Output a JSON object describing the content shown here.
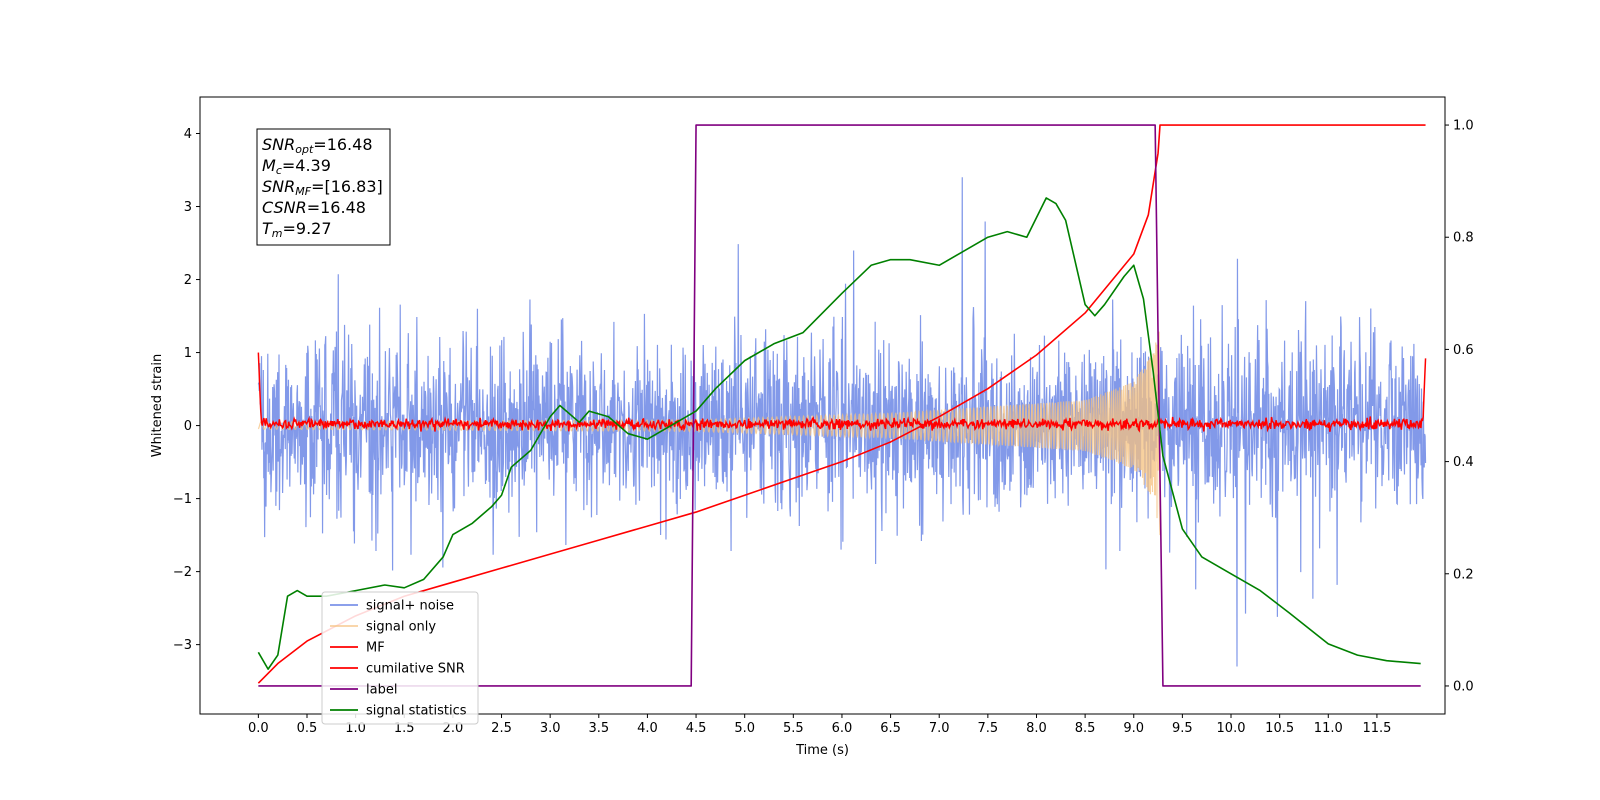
{
  "chart_data": {
    "type": "line",
    "xlabel": "Time (s)",
    "ylabel": "Whitened strain",
    "xlim": [
      -0.6,
      12.2
    ],
    "ylim": [
      -3.95,
      4.5
    ],
    "ylim_right": [
      -0.05,
      1.05
    ],
    "x_ticks": [
      "0.0",
      "0.5",
      "1.0",
      "1.5",
      "2.0",
      "2.5",
      "3.0",
      "3.5",
      "4.0",
      "4.5",
      "5.0",
      "5.5",
      "6.0",
      "6.5",
      "7.0",
      "7.5",
      "8.0",
      "8.5",
      "9.0",
      "9.5",
      "10.0",
      "10.5",
      "11.0",
      "11.5"
    ],
    "y_ticks": [
      "−3",
      "−2",
      "−1",
      "0",
      "1",
      "2",
      "3",
      "4"
    ],
    "y_ticks_right": [
      "0.0",
      "0.2",
      "0.4",
      "0.6",
      "0.8",
      "1.0"
    ],
    "legend_location": "lower-left",
    "annotation": {
      "snr_opt": "SNR",
      "snr_opt_sub": "opt",
      "snr_opt_val": "=16.48",
      "mc": "M",
      "mc_sub": "c",
      "mc_val": "=4.39",
      "snr_mf": "SNR",
      "snr_mf_sub": "MF",
      "snr_mf_val": "=[16.83]",
      "csnr": "CSNR",
      "csnr_val": "=16.48",
      "tm": "T",
      "tm_sub": "m",
      "tm_val": "=9.27"
    },
    "series": [
      {
        "name": "signal+ noise",
        "color": "#7b93e8",
        "kind": "noise",
        "axis": "left",
        "envelope_std": 0.95,
        "x_range": [
          0,
          12
        ]
      },
      {
        "name": "signal only",
        "color": "#f5c27f",
        "kind": "chirp",
        "axis": "left",
        "merger_time": 9.27,
        "amplitudes": [
          [
            0,
            0.05
          ],
          [
            4.5,
            0.08
          ],
          [
            6.5,
            0.17
          ],
          [
            8.5,
            0.35
          ],
          [
            9.0,
            0.6
          ],
          [
            9.2,
            1.0
          ],
          [
            9.27,
            1.5
          ]
        ]
      },
      {
        "name": "MF",
        "color": "#ff0000",
        "kind": "mf",
        "axis": "left",
        "x_range": [
          0,
          12
        ],
        "baseline": 0.02,
        "edge_value": 1.0
      },
      {
        "name": "cumilative SNR",
        "color": "#ff0000",
        "kind": "cumulative",
        "axis": "right",
        "x": [
          0,
          0.2,
          0.5,
          1.0,
          1.5,
          2.0,
          2.5,
          3.0,
          3.5,
          4.0,
          4.5,
          5.0,
          5.5,
          6.0,
          6.5,
          7.0,
          7.5,
          8.0,
          8.5,
          9.0,
          9.15,
          9.25,
          9.27,
          12.0
        ],
        "y": [
          0.005,
          0.04,
          0.08,
          0.125,
          0.16,
          0.185,
          0.21,
          0.235,
          0.26,
          0.285,
          0.31,
          0.34,
          0.37,
          0.4,
          0.435,
          0.48,
          0.53,
          0.59,
          0.665,
          0.77,
          0.84,
          0.95,
          1.0,
          1.0
        ]
      },
      {
        "name": "label",
        "color": "#800080",
        "kind": "step",
        "axis": "right",
        "x": [
          0,
          4.45,
          4.5,
          9.22,
          9.3,
          11.95
        ],
        "y": [
          0,
          0,
          1,
          1,
          0,
          0
        ]
      },
      {
        "name": "signal statistics",
        "color": "#008000",
        "kind": "line",
        "axis": "right",
        "x": [
          0,
          0.1,
          0.2,
          0.3,
          0.4,
          0.5,
          0.7,
          1.0,
          1.3,
          1.5,
          1.7,
          1.9,
          2.0,
          2.2,
          2.4,
          2.5,
          2.6,
          2.8,
          3.0,
          3.1,
          3.3,
          3.4,
          3.6,
          3.8,
          4.0,
          4.1,
          4.3,
          4.5,
          4.7,
          5.0,
          5.3,
          5.6,
          6.0,
          6.3,
          6.5,
          6.7,
          7.0,
          7.2,
          7.5,
          7.7,
          7.9,
          8.1,
          8.2,
          8.3,
          8.5,
          8.6,
          8.7,
          8.9,
          9.0,
          9.1,
          9.2,
          9.3,
          9.5,
          9.7,
          10.0,
          10.3,
          10.6,
          11.0,
          11.3,
          11.6,
          11.95
        ],
        "y": [
          0.06,
          0.03,
          0.055,
          0.16,
          0.17,
          0.16,
          0.16,
          0.17,
          0.18,
          0.175,
          0.19,
          0.23,
          0.27,
          0.29,
          0.32,
          0.34,
          0.39,
          0.42,
          0.48,
          0.5,
          0.47,
          0.49,
          0.48,
          0.45,
          0.44,
          0.45,
          0.47,
          0.49,
          0.53,
          0.58,
          0.61,
          0.63,
          0.7,
          0.75,
          0.76,
          0.76,
          0.75,
          0.77,
          0.8,
          0.81,
          0.8,
          0.87,
          0.86,
          0.83,
          0.68,
          0.66,
          0.68,
          0.73,
          0.75,
          0.69,
          0.56,
          0.41,
          0.28,
          0.23,
          0.2,
          0.17,
          0.13,
          0.075,
          0.055,
          0.045,
          0.04
        ]
      }
    ]
  }
}
